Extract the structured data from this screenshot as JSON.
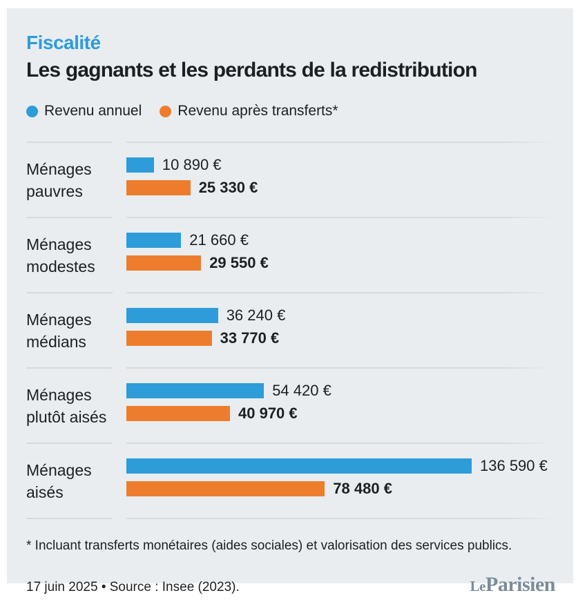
{
  "kicker": "Fiscalité",
  "title": "Les gagnants et les perdants de la redistribution",
  "legend": [
    {
      "label": "Revenu annuel",
      "color": "#2d9cd9"
    },
    {
      "label": "Revenu après transferts*",
      "color": "#ed7d2d"
    }
  ],
  "chart_data": {
    "type": "bar",
    "orientation": "horizontal",
    "categories": [
      "Ménages pauvres",
      "Ménages modestes",
      "Ménages médians",
      "Ménages plutôt aisés",
      "Ménages aisés"
    ],
    "series": [
      {
        "name": "Revenu annuel",
        "color": "#2d9cd9",
        "values": [
          10890,
          21660,
          36240,
          54420,
          136590
        ],
        "labels": [
          "10 890 €",
          "21 660 €",
          "36 240 €",
          "54 420 €",
          "136 590 €"
        ]
      },
      {
        "name": "Revenu après transferts*",
        "color": "#ed7d2d",
        "values": [
          25330,
          29550,
          33770,
          40970,
          78480
        ],
        "labels": [
          "25 330 €",
          "29 550 €",
          "33 770 €",
          "40 970 €",
          "78 480 €"
        ]
      }
    ],
    "xmax": 136590,
    "xlabel": "",
    "ylabel": "",
    "grid": false,
    "legend_position": "top"
  },
  "footnote": "* Incluant transferts monétaires (aides sociales) et valorisation des services publics.",
  "date_source": "17 juin 2025 • Source : Insee (2023).",
  "brand": {
    "le": "Le",
    "parisien": "Parisien"
  },
  "colors": {
    "panel_bg": "#e9edf0",
    "blue": "#2d9cd9",
    "orange": "#ed7d2d",
    "separator": "#d4dade",
    "brand": "#7b8c99"
  }
}
